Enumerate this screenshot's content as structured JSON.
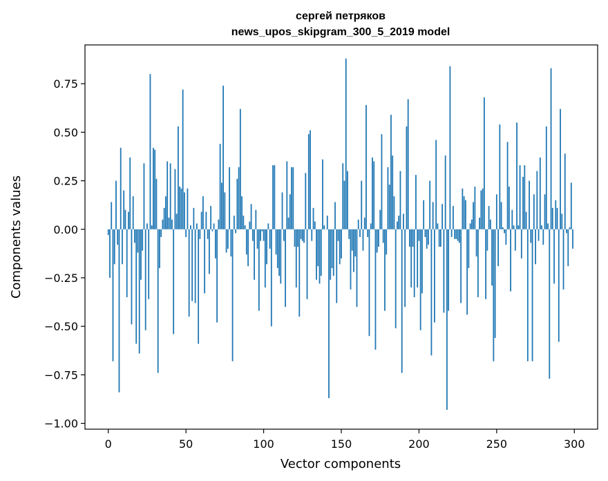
{
  "chart_data": {
    "type": "bar",
    "title": [
      "сергей петряков",
      "news_upos_skipgram_300_5_2019 model"
    ],
    "xlabel": "Vector components",
    "ylabel": "Components values",
    "xlim": [
      -15,
      315
    ],
    "ylim": [
      -1.03,
      0.95
    ],
    "xticks": [
      0,
      50,
      100,
      150,
      200,
      250,
      300
    ],
    "xtick_labels": [
      "0",
      "50",
      "100",
      "150",
      "200",
      "250",
      "300"
    ],
    "yticks": [
      0.75,
      0.5,
      0.25,
      0.0,
      -0.25,
      -0.5,
      -0.75,
      -1.0
    ],
    "ytick_labels": [
      "0.75",
      "0.50",
      "0.25",
      "0.00",
      "−0.25",
      "−0.50",
      "−0.75",
      "−1.00"
    ],
    "bar_color": "#1f77b4",
    "values": [
      -0.03,
      -0.25,
      0.14,
      -0.68,
      -0.18,
      0.25,
      -0.08,
      -0.84,
      0.42,
      -0.18,
      0.2,
      0.1,
      -0.35,
      0.09,
      0.37,
      -0.49,
      0.17,
      -0.07,
      -0.59,
      -0.12,
      -0.64,
      -0.26,
      -0.11,
      0.34,
      -0.52,
      0.03,
      -0.36,
      0.8,
      0.02,
      0.42,
      0.41,
      0.26,
      -0.74,
      -0.2,
      -0.04,
      0.05,
      0.11,
      0.17,
      0.35,
      0.06,
      0.34,
      0.05,
      -0.54,
      0.31,
      0.08,
      0.53,
      0.22,
      0.21,
      0.72,
      0.19,
      -0.04,
      0.21,
      -0.45,
      0.02,
      -0.37,
      0.11,
      -0.38,
      0.03,
      -0.59,
      -0.05,
      0.09,
      0.17,
      -0.33,
      0.09,
      -0.05,
      -0.23,
      0.12,
      -0.01,
      0.03,
      -0.15,
      -0.48,
      0.05,
      0.44,
      0.24,
      0.74,
      0.19,
      -0.12,
      -0.1,
      0.32,
      -0.14,
      -0.68,
      0.07,
      -0.02,
      0.26,
      0.32,
      0.62,
      0.17,
      0.07,
      0.02,
      -0.13,
      -0.19,
      0.04,
      0.13,
      -0.06,
      -0.26,
      0.1,
      -0.1,
      -0.42,
      -0.06,
      -0.01,
      -0.06,
      -0.3,
      -0.18,
      0.03,
      -0.1,
      -0.5,
      0.33,
      0.33,
      -0.13,
      -0.2,
      -0.24,
      -0.28,
      0.19,
      -0.06,
      -0.4,
      0.35,
      0.06,
      0.18,
      0.32,
      0.32,
      -0.09,
      -0.3,
      -0.09,
      -0.45,
      -0.05,
      -0.06,
      -0.07,
      0.29,
      -0.36,
      0.49,
      0.51,
      -0.06,
      0.11,
      0.04,
      -0.26,
      -0.19,
      -0.28,
      -0.24,
      0.36,
      0.02,
      0.0,
      0.07,
      -0.87,
      -0.26,
      -0.2,
      -0.24,
      0.14,
      -0.38,
      -0.06,
      -0.18,
      -0.15,
      0.34,
      0.25,
      0.88,
      0.3,
      -0.05,
      -0.31,
      -0.11,
      -0.22,
      -0.14,
      -0.4,
      0.05,
      -0.04,
      0.25,
      -0.11,
      0.06,
      0.64,
      -0.04,
      -0.55,
      0.03,
      0.37,
      0.35,
      -0.62,
      -0.12,
      -0.09,
      0.1,
      0.49,
      -0.07,
      -0.42,
      -0.13,
      0.32,
      0.23,
      0.59,
      0.38,
      0.17,
      -0.51,
      0.04,
      0.07,
      0.3,
      -0.74,
      0.08,
      -0.4,
      0.53,
      0.67,
      -0.09,
      -0.3,
      -0.09,
      -0.35,
      0.28,
      -0.3,
      -0.06,
      -0.52,
      -0.33,
      0.15,
      -0.04,
      -0.1,
      -0.08,
      0.25,
      -0.65,
      0.14,
      -0.48,
      0.46,
      0.03,
      -0.09,
      -0.09,
      0.13,
      -0.43,
      0.38,
      -0.93,
      -0.42,
      0.84,
      -0.04,
      0.12,
      -0.05,
      -0.05,
      -0.06,
      -0.07,
      -0.38,
      0.21,
      0.17,
      0.15,
      -0.44,
      -0.2,
      0.03,
      0.05,
      0.14,
      0.22,
      -0.14,
      -0.35,
      0.06,
      0.2,
      0.21,
      0.68,
      -0.36,
      -0.11,
      0.12,
      0.05,
      -0.29,
      -0.68,
      -0.56,
      0.18,
      -0.19,
      0.54,
      0.14,
      0.01,
      -0.02,
      -0.08,
      0.45,
      0.22,
      -0.32,
      0.1,
      0.02,
      -0.11,
      0.55,
      0.02,
      0.33,
      -0.15,
      0.27,
      0.33,
      0.09,
      -0.68,
      0.25,
      -0.07,
      -0.68,
      0.18,
      -0.18,
      0.3,
      -0.06,
      0.37,
      0.02,
      -0.08,
      0.18,
      0.53,
      0.03,
      -0.77,
      0.83,
      0.11,
      -0.28,
      0.15,
      0.11,
      -0.58,
      0.62,
      0.08,
      -0.31,
      0.39,
      -0.02,
      -0.19,
      0.01,
      0.24,
      -0.1
    ]
  }
}
